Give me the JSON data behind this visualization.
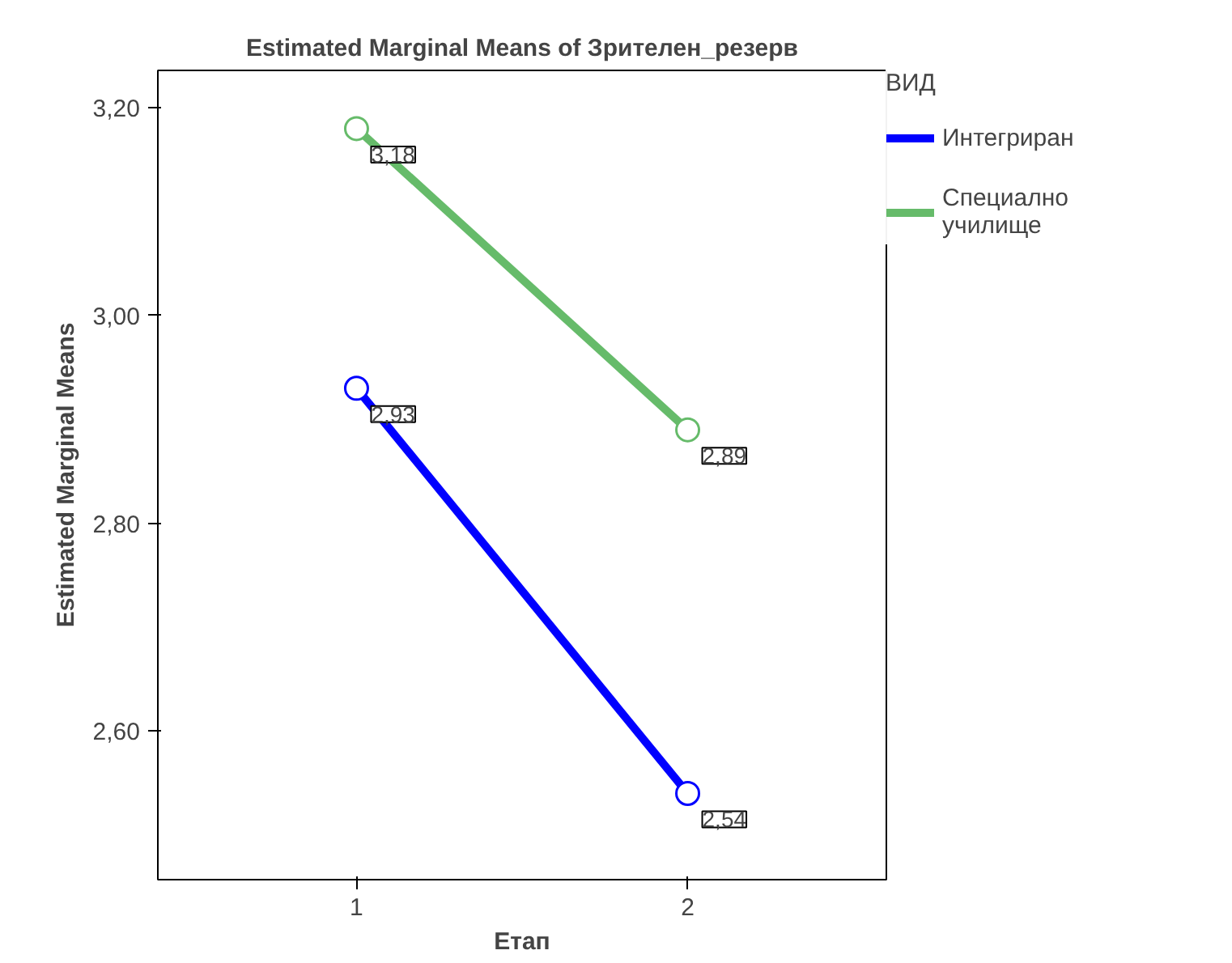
{
  "chart_data": {
    "type": "line",
    "title": "Estimated Marginal Means of Зрителен_резерв",
    "xlabel": "Етап",
    "ylabel": "Estimated Marginal Means",
    "legend_title": "ВИД",
    "x": [
      1,
      2
    ],
    "xlim": [
      0.4,
      2.6
    ],
    "xticks": [
      1,
      2
    ],
    "ylim": [
      2.457,
      3.236
    ],
    "yticks": [
      {
        "value": 2.6,
        "label": "2,60"
      },
      {
        "value": 2.8,
        "label": "2,80"
      },
      {
        "value": 3.0,
        "label": "3,00"
      },
      {
        "value": 3.2,
        "label": "3,20"
      }
    ],
    "series": [
      {
        "name": "Интегриран",
        "color": "#0000ff",
        "values": [
          2.93,
          2.54
        ],
        "value_labels": [
          "2,93",
          "2,54"
        ]
      },
      {
        "name": "Специално училище",
        "color": "#66bb6a",
        "values": [
          3.18,
          2.89
        ],
        "value_labels": [
          "3,18",
          "2,89"
        ]
      }
    ],
    "marker": "circle",
    "line_style": "solid",
    "grid": false,
    "legend": "right"
  }
}
